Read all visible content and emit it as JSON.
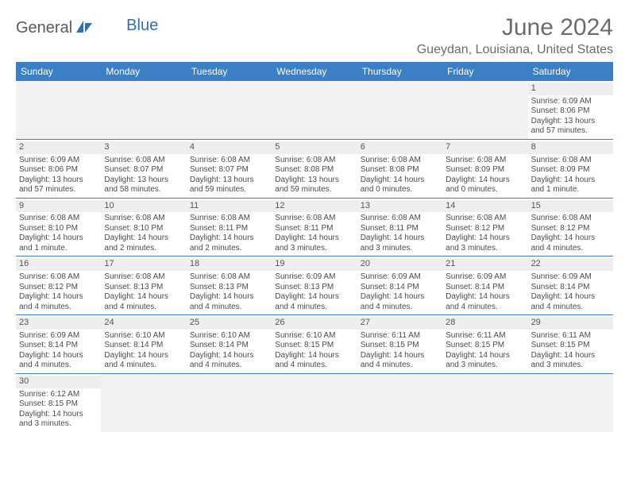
{
  "logo": {
    "text1": "General",
    "text2": "Blue"
  },
  "title": "June 2024",
  "location": "Gueydan, Louisiana, United States",
  "colors": {
    "header_bg": "#3b7fc4",
    "header_text": "#ffffff",
    "daynum_bg": "#eeeeee",
    "week_border": "#3b7fc4",
    "text": "#4a4a4a",
    "title_color": "#6b6b6b"
  },
  "font": {
    "family": "Arial",
    "cell_size_pt": 8,
    "title_size_pt": 22
  },
  "dow": [
    "Sunday",
    "Monday",
    "Tuesday",
    "Wednesday",
    "Thursday",
    "Friday",
    "Saturday"
  ],
  "weeks": [
    [
      null,
      null,
      null,
      null,
      null,
      null,
      {
        "d": "1",
        "sr": "6:09 AM",
        "ss": "8:06 PM",
        "dl1": "13 hours",
        "dl2": "and 57 minutes."
      }
    ],
    [
      {
        "d": "2",
        "sr": "6:09 AM",
        "ss": "8:06 PM",
        "dl1": "13 hours",
        "dl2": "and 57 minutes."
      },
      {
        "d": "3",
        "sr": "6:08 AM",
        "ss": "8:07 PM",
        "dl1": "13 hours",
        "dl2": "and 58 minutes."
      },
      {
        "d": "4",
        "sr": "6:08 AM",
        "ss": "8:07 PM",
        "dl1": "13 hours",
        "dl2": "and 59 minutes."
      },
      {
        "d": "5",
        "sr": "6:08 AM",
        "ss": "8:08 PM",
        "dl1": "13 hours",
        "dl2": "and 59 minutes."
      },
      {
        "d": "6",
        "sr": "6:08 AM",
        "ss": "8:08 PM",
        "dl1": "14 hours",
        "dl2": "and 0 minutes."
      },
      {
        "d": "7",
        "sr": "6:08 AM",
        "ss": "8:09 PM",
        "dl1": "14 hours",
        "dl2": "and 0 minutes."
      },
      {
        "d": "8",
        "sr": "6:08 AM",
        "ss": "8:09 PM",
        "dl1": "14 hours",
        "dl2": "and 1 minute."
      }
    ],
    [
      {
        "d": "9",
        "sr": "6:08 AM",
        "ss": "8:10 PM",
        "dl1": "14 hours",
        "dl2": "and 1 minute."
      },
      {
        "d": "10",
        "sr": "6:08 AM",
        "ss": "8:10 PM",
        "dl1": "14 hours",
        "dl2": "and 2 minutes."
      },
      {
        "d": "11",
        "sr": "6:08 AM",
        "ss": "8:11 PM",
        "dl1": "14 hours",
        "dl2": "and 2 minutes."
      },
      {
        "d": "12",
        "sr": "6:08 AM",
        "ss": "8:11 PM",
        "dl1": "14 hours",
        "dl2": "and 3 minutes."
      },
      {
        "d": "13",
        "sr": "6:08 AM",
        "ss": "8:11 PM",
        "dl1": "14 hours",
        "dl2": "and 3 minutes."
      },
      {
        "d": "14",
        "sr": "6:08 AM",
        "ss": "8:12 PM",
        "dl1": "14 hours",
        "dl2": "and 3 minutes."
      },
      {
        "d": "15",
        "sr": "6:08 AM",
        "ss": "8:12 PM",
        "dl1": "14 hours",
        "dl2": "and 4 minutes."
      }
    ],
    [
      {
        "d": "16",
        "sr": "6:08 AM",
        "ss": "8:12 PM",
        "dl1": "14 hours",
        "dl2": "and 4 minutes."
      },
      {
        "d": "17",
        "sr": "6:08 AM",
        "ss": "8:13 PM",
        "dl1": "14 hours",
        "dl2": "and 4 minutes."
      },
      {
        "d": "18",
        "sr": "6:08 AM",
        "ss": "8:13 PM",
        "dl1": "14 hours",
        "dl2": "and 4 minutes."
      },
      {
        "d": "19",
        "sr": "6:09 AM",
        "ss": "8:13 PM",
        "dl1": "14 hours",
        "dl2": "and 4 minutes."
      },
      {
        "d": "20",
        "sr": "6:09 AM",
        "ss": "8:14 PM",
        "dl1": "14 hours",
        "dl2": "and 4 minutes."
      },
      {
        "d": "21",
        "sr": "6:09 AM",
        "ss": "8:14 PM",
        "dl1": "14 hours",
        "dl2": "and 4 minutes."
      },
      {
        "d": "22",
        "sr": "6:09 AM",
        "ss": "8:14 PM",
        "dl1": "14 hours",
        "dl2": "and 4 minutes."
      }
    ],
    [
      {
        "d": "23",
        "sr": "6:09 AM",
        "ss": "8:14 PM",
        "dl1": "14 hours",
        "dl2": "and 4 minutes."
      },
      {
        "d": "24",
        "sr": "6:10 AM",
        "ss": "8:14 PM",
        "dl1": "14 hours",
        "dl2": "and 4 minutes."
      },
      {
        "d": "25",
        "sr": "6:10 AM",
        "ss": "8:14 PM",
        "dl1": "14 hours",
        "dl2": "and 4 minutes."
      },
      {
        "d": "26",
        "sr": "6:10 AM",
        "ss": "8:15 PM",
        "dl1": "14 hours",
        "dl2": "and 4 minutes."
      },
      {
        "d": "27",
        "sr": "6:11 AM",
        "ss": "8:15 PM",
        "dl1": "14 hours",
        "dl2": "and 4 minutes."
      },
      {
        "d": "28",
        "sr": "6:11 AM",
        "ss": "8:15 PM",
        "dl1": "14 hours",
        "dl2": "and 3 minutes."
      },
      {
        "d": "29",
        "sr": "6:11 AM",
        "ss": "8:15 PM",
        "dl1": "14 hours",
        "dl2": "and 3 minutes."
      }
    ],
    [
      {
        "d": "30",
        "sr": "6:12 AM",
        "ss": "8:15 PM",
        "dl1": "14 hours",
        "dl2": "and 3 minutes."
      },
      null,
      null,
      null,
      null,
      null,
      null
    ]
  ],
  "labels": {
    "sunrise": "Sunrise:",
    "sunset": "Sunset:",
    "daylight": "Daylight:"
  }
}
